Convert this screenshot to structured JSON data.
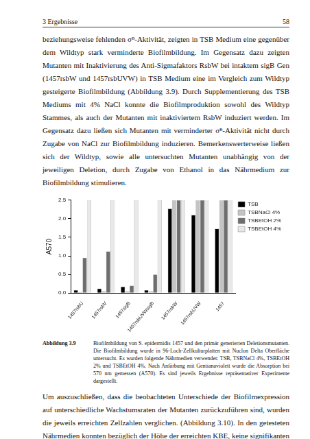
{
  "header": {
    "section": "3 Ergebnisse",
    "page": "58"
  },
  "paragraph_before": "beziehungsweise fehlenden σᴮ-Aktivität, zeigten in TSB Medium eine gegenüber dem Wildtyp stark verminderte Biofilmbildung. Im Gegensatz dazu zeigten Mutanten mit Inaktivierung des Anti-Sigmafaktors RsbW bei intaktem sigB Gen (1457rsbW und 1457rsbUVW) in TSB Medium eine im Vergleich zum Wildtyp gesteigerte Biofilmbildung (Abbildung 3.9). Durch Supplementierung des TSB Mediums mit 4% NaCl konnte die Biofilmproduktion sowohl des Wildtyp Stammes, als auch der Mutanten mit inaktiviertem RsbW induziert werden. Im Gegensatz dazu ließen sich Mutanten mit verminderter σᴮ-Aktivität nicht durch Zugabe von NaCl zur Biofilmbildung induzieren. Bemerkenswerterweise ließen sich der Wildtyp, sowie alle untersuchten Mutanten unabhängig von der jeweiligen Deletion, durch Zugabe von Ethanol in das Nährmedium zur Biofilmbildung stimulieren.",
  "chart_data": {
    "type": "bar",
    "y_label": "A570",
    "categories": [
      "1457rsbU",
      "1457rsbV",
      "1457sigB",
      "1457rsbUVWsigB",
      "1457rsbW",
      "1457rsbUVW",
      "1457"
    ],
    "series": [
      {
        "name": "TSB",
        "color": "#000000",
        "values": [
          0.08,
          0.12,
          0.17,
          0.08,
          2.27,
          2.1,
          1.73
        ]
      },
      {
        "name": "TSBNaCl 4%",
        "color": "#c4c4c4",
        "values": [
          0.03,
          0.05,
          0.05,
          0.05,
          2.5,
          2.5,
          2.5
        ]
      },
      {
        "name": "TSBEtOH 2%",
        "color": "#6e6e6e",
        "values": [
          0.95,
          1.12,
          0.2,
          0.5,
          2.5,
          2.5,
          2.5
        ]
      },
      {
        "name": "TSBEtOH 4%",
        "color": "#e8e8e8",
        "values": [
          2.5,
          2.5,
          2.5,
          2.5,
          2.5,
          2.5,
          2.5
        ]
      }
    ],
    "ylim": [
      0,
      2.5
    ],
    "yticks": [
      {
        "value": 0,
        "label": "0.0"
      },
      0.5,
      {
        "value": 1,
        "label": "1.0"
      },
      1.5,
      {
        "value": 2,
        "label": "2.0"
      },
      2.5
    ],
    "grid": false,
    "legend": "right"
  },
  "caption": {
    "label": "Abbildung 3.9",
    "text": "Biofilmbildung von S. epidermidis 1457 und den primär generierten Deletionsmutanten. Die Biofilmbildung wurde in 96-Loch-Zellkulturplatten mit Nuclon Delta Oberfläche untersucht. Es wurden folgende Nährmedien verwendet: TSB, TSBNaCl 4%, TSBEtOH 2% und TSBEtOH 4%. Nach Anfärbung mit Gentianaviolett wurde die Absorption bei 570 nm gemessen (A570). Es sind jeweils Ergebnisse repräsentativer Experimente dargestellt."
  },
  "paragraph_after": "Um auszuschließen, dass die beobachteten Unterschiede der Biofilmexpression auf unterschiedliche Wachstumsraten der Mutanten zurückzuführen sind, wurden die jeweils erreichten Zellzahlen verglichen. (Abbildung 3.10). In den getesteten Nährmedien konnten bezüglich der Höhe der erreichten KBE, keine signifikanten Unterschiede zwischen den Mutanten und dem Wildtypstamm S. epidermidis 1457 festgestellt werden."
}
